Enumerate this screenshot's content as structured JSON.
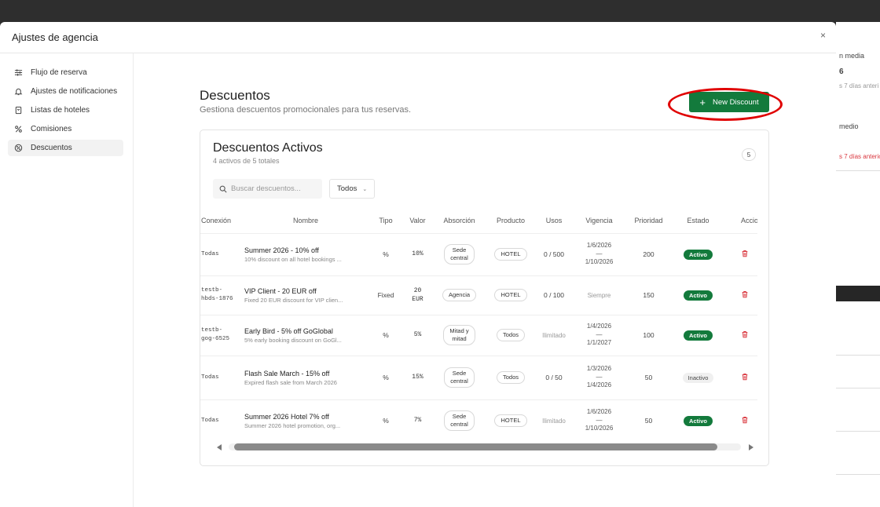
{
  "background": {
    "texts": [
      "n media",
      "6",
      "s 7 días anteri",
      "medio",
      "s 7 días anterio"
    ]
  },
  "modal": {
    "title": "Ajustes de agencia",
    "close_label": "×"
  },
  "sidebar": {
    "items": [
      {
        "label": "Flujo de reserva",
        "icon": "sliders-icon"
      },
      {
        "label": "Ajustes de notificaciones",
        "icon": "bell-icon"
      },
      {
        "label": "Listas de hoteles",
        "icon": "bookmark-icon"
      },
      {
        "label": "Comisiones",
        "icon": "percent-icon"
      },
      {
        "label": "Descuentos",
        "icon": "discount-icon",
        "active": true
      }
    ]
  },
  "page": {
    "title": "Descuentos",
    "subtitle": "Gestiona descuentos promocionales para tus reservas.",
    "new_button": "New Discount"
  },
  "card": {
    "title": "Descuentos Activos",
    "subtitle": "4 activos de 5 totales",
    "count": "5",
    "search_placeholder": "Buscar descuentos...",
    "filter_value": "Todos"
  },
  "table": {
    "columns": [
      "Conexión",
      "Nombre",
      "Tipo",
      "Valor",
      "Absorción",
      "Producto",
      "Usos",
      "Vigencia",
      "Prioridad",
      "Estado",
      "Acciones"
    ],
    "rows": [
      {
        "conexion": [
          "Todas"
        ],
        "nombre": "Summer 2026 - 10% off",
        "descripcion": "10% discount on all hotel bookings ...",
        "tipo": "%",
        "valor": [
          "10%"
        ],
        "absorcion": [
          "Sede",
          "central"
        ],
        "producto": "HOTEL",
        "usos": "0 / 500",
        "usos_muted": false,
        "vigencia": [
          "1/6/2026",
          "—",
          "1/10/2026"
        ],
        "prioridad": "200",
        "estado": "Activo",
        "activo": true
      },
      {
        "conexion": [
          "testb-",
          "hbds-1876"
        ],
        "nombre": "VIP Client - 20 EUR off",
        "descripcion": "Fixed 20 EUR discount for VIP clien...",
        "tipo": "Fixed",
        "valor": [
          "20",
          "EUR"
        ],
        "absorcion": [
          "Agencia"
        ],
        "producto": "HOTEL",
        "usos": "0 / 100",
        "usos_muted": false,
        "vigencia": [
          "Siempre"
        ],
        "vigencia_muted": true,
        "prioridad": "150",
        "estado": "Activo",
        "activo": true
      },
      {
        "conexion": [
          "testb-",
          "gog-6525"
        ],
        "nombre": "Early Bird - 5% off GoGlobal",
        "descripcion": "5% early booking discount on GoGl...",
        "tipo": "%",
        "valor": [
          "5%"
        ],
        "absorcion": [
          "Mitad y",
          "mitad"
        ],
        "producto": "Todos",
        "usos": "Ilimitado",
        "usos_muted": true,
        "vigencia": [
          "1/4/2026",
          "—",
          "1/1/2027"
        ],
        "prioridad": "100",
        "estado": "Activo",
        "activo": true
      },
      {
        "conexion": [
          "Todas"
        ],
        "nombre": "Flash Sale March - 15% off",
        "descripcion": "Expired flash sale from March 2026",
        "tipo": "%",
        "valor": [
          "15%"
        ],
        "absorcion": [
          "Sede",
          "central"
        ],
        "producto": "Todos",
        "usos": "0 / 50",
        "usos_muted": false,
        "vigencia": [
          "1/3/2026",
          "—",
          "1/4/2026"
        ],
        "prioridad": "50",
        "estado": "Inactivo",
        "activo": false
      },
      {
        "conexion": [
          "Todas"
        ],
        "nombre": "Summer 2026 Hotel 7% off",
        "descripcion": "Summer 2026 hotel promotion, org...",
        "tipo": "%",
        "valor": [
          "7%"
        ],
        "absorcion": [
          "Sede",
          "central"
        ],
        "producto": "HOTEL",
        "usos": "Ilimitado",
        "usos_muted": true,
        "vigencia": [
          "1/6/2026",
          "—",
          "1/10/2026"
        ],
        "prioridad": "50",
        "estado": "Activo",
        "activo": true
      }
    ]
  },
  "colors": {
    "primary": "#137a3c",
    "danger": "#d9363e",
    "highlight": "#e00000"
  }
}
